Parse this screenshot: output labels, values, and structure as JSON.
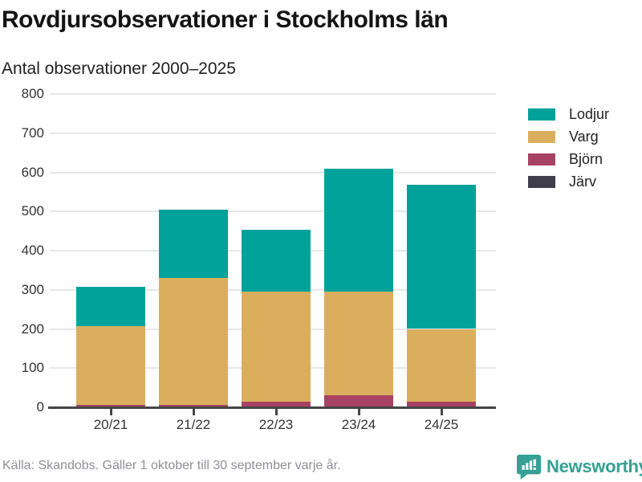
{
  "header": {
    "title": "Rovdjursobservationer i Stockholms län",
    "subtitle": "Antal observationer 2000–2025"
  },
  "chart_data": {
    "type": "bar",
    "stacked": true,
    "title": "Rovdjursobservationer i Stockholms län",
    "subtitle": "Antal observationer 2000–2025",
    "xlabel": "",
    "ylabel": "Antal observationer",
    "categories": [
      "20/21",
      "21/22",
      "22/23",
      "23/24",
      "24/25"
    ],
    "series": [
      {
        "name": "Järv",
        "color": "#403d4d",
        "values": [
          1,
          1,
          1,
          1,
          1
        ]
      },
      {
        "name": "Björn",
        "color": "#a84264",
        "values": [
          6,
          6,
          14,
          29,
          13
        ]
      },
      {
        "name": "Varg",
        "color": "#dbae5d",
        "values": [
          201,
          323,
          281,
          266,
          186
        ]
      },
      {
        "name": "Lodjur",
        "color": "#00a29a",
        "values": [
          100,
          175,
          157,
          313,
          368
        ]
      }
    ],
    "totals": [
      308,
      505,
      453,
      609,
      568
    ],
    "ylim": [
      0,
      800
    ],
    "yticks": [
      0,
      100,
      200,
      300,
      400,
      500,
      600,
      700,
      800
    ],
    "grid": true,
    "legend_position": "right"
  },
  "legend": {
    "items": [
      {
        "label": "Lodjur",
        "color": "#00a29a"
      },
      {
        "label": "Varg",
        "color": "#dbae5d"
      },
      {
        "label": "Björn",
        "color": "#a84264"
      },
      {
        "label": "Järv",
        "color": "#403d4d"
      }
    ]
  },
  "footer": {
    "source": "Källa: Skandobs. Gäller 1 oktober till 30 september varje år.",
    "brand": "Newsworthy"
  },
  "colors": {
    "accent_teal": "#00a29a",
    "gold": "#dbae5d",
    "maroon": "#a84264",
    "dark_slate": "#403d4d",
    "axis": "#454545",
    "gridline": "#e7e7e7",
    "brand_teal": "#35a093"
  }
}
